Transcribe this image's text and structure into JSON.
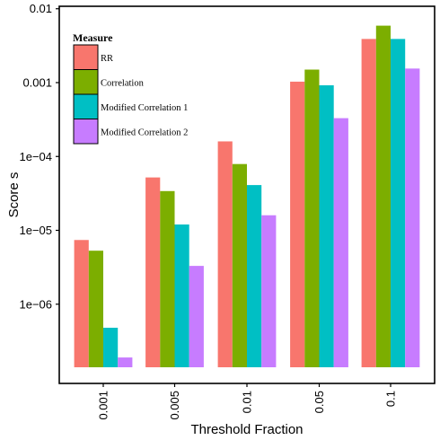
{
  "chart_data": {
    "type": "bar",
    "title": "",
    "xlabel": "Threshold Fraction",
    "ylabel": "Score s",
    "y_scale": "log10",
    "ylim": [
      1.4e-07,
      0.0105
    ],
    "grid": false,
    "legend_placement": "top-left",
    "legend_title": "Measure",
    "categories": [
      "0.001",
      "0.005",
      "0.01",
      "0.05",
      "0.1"
    ],
    "y_ticks": [
      {
        "value": 1e-06,
        "label": "1e−06"
      },
      {
        "value": 1e-05,
        "label": "1e−05"
      },
      {
        "value": 0.0001,
        "label": "1e−04"
      },
      {
        "value": 0.001,
        "label": "0.001"
      },
      {
        "value": 0.01,
        "label": "0.01"
      }
    ],
    "series": [
      {
        "name": "RR",
        "color": "#F8766D",
        "values": [
          7.4e-06,
          5.2e-05,
          0.00016,
          0.00103,
          0.0039
        ]
      },
      {
        "name": "Correlation",
        "color": "#7CAE00",
        "values": [
          5.3e-06,
          3.4e-05,
          7.9e-05,
          0.0015,
          0.0059
        ]
      },
      {
        "name": "Modified Correlation 1",
        "color": "#00BFC4",
        "values": [
          4.8e-07,
          1.2e-05,
          4.1e-05,
          0.00092,
          0.0039
        ]
      },
      {
        "name": "Modified Correlation 2",
        "color": "#C77CFF",
        "values": [
          1.9e-07,
          3.3e-06,
          1.6e-05,
          0.00033,
          0.00155
        ]
      }
    ]
  }
}
